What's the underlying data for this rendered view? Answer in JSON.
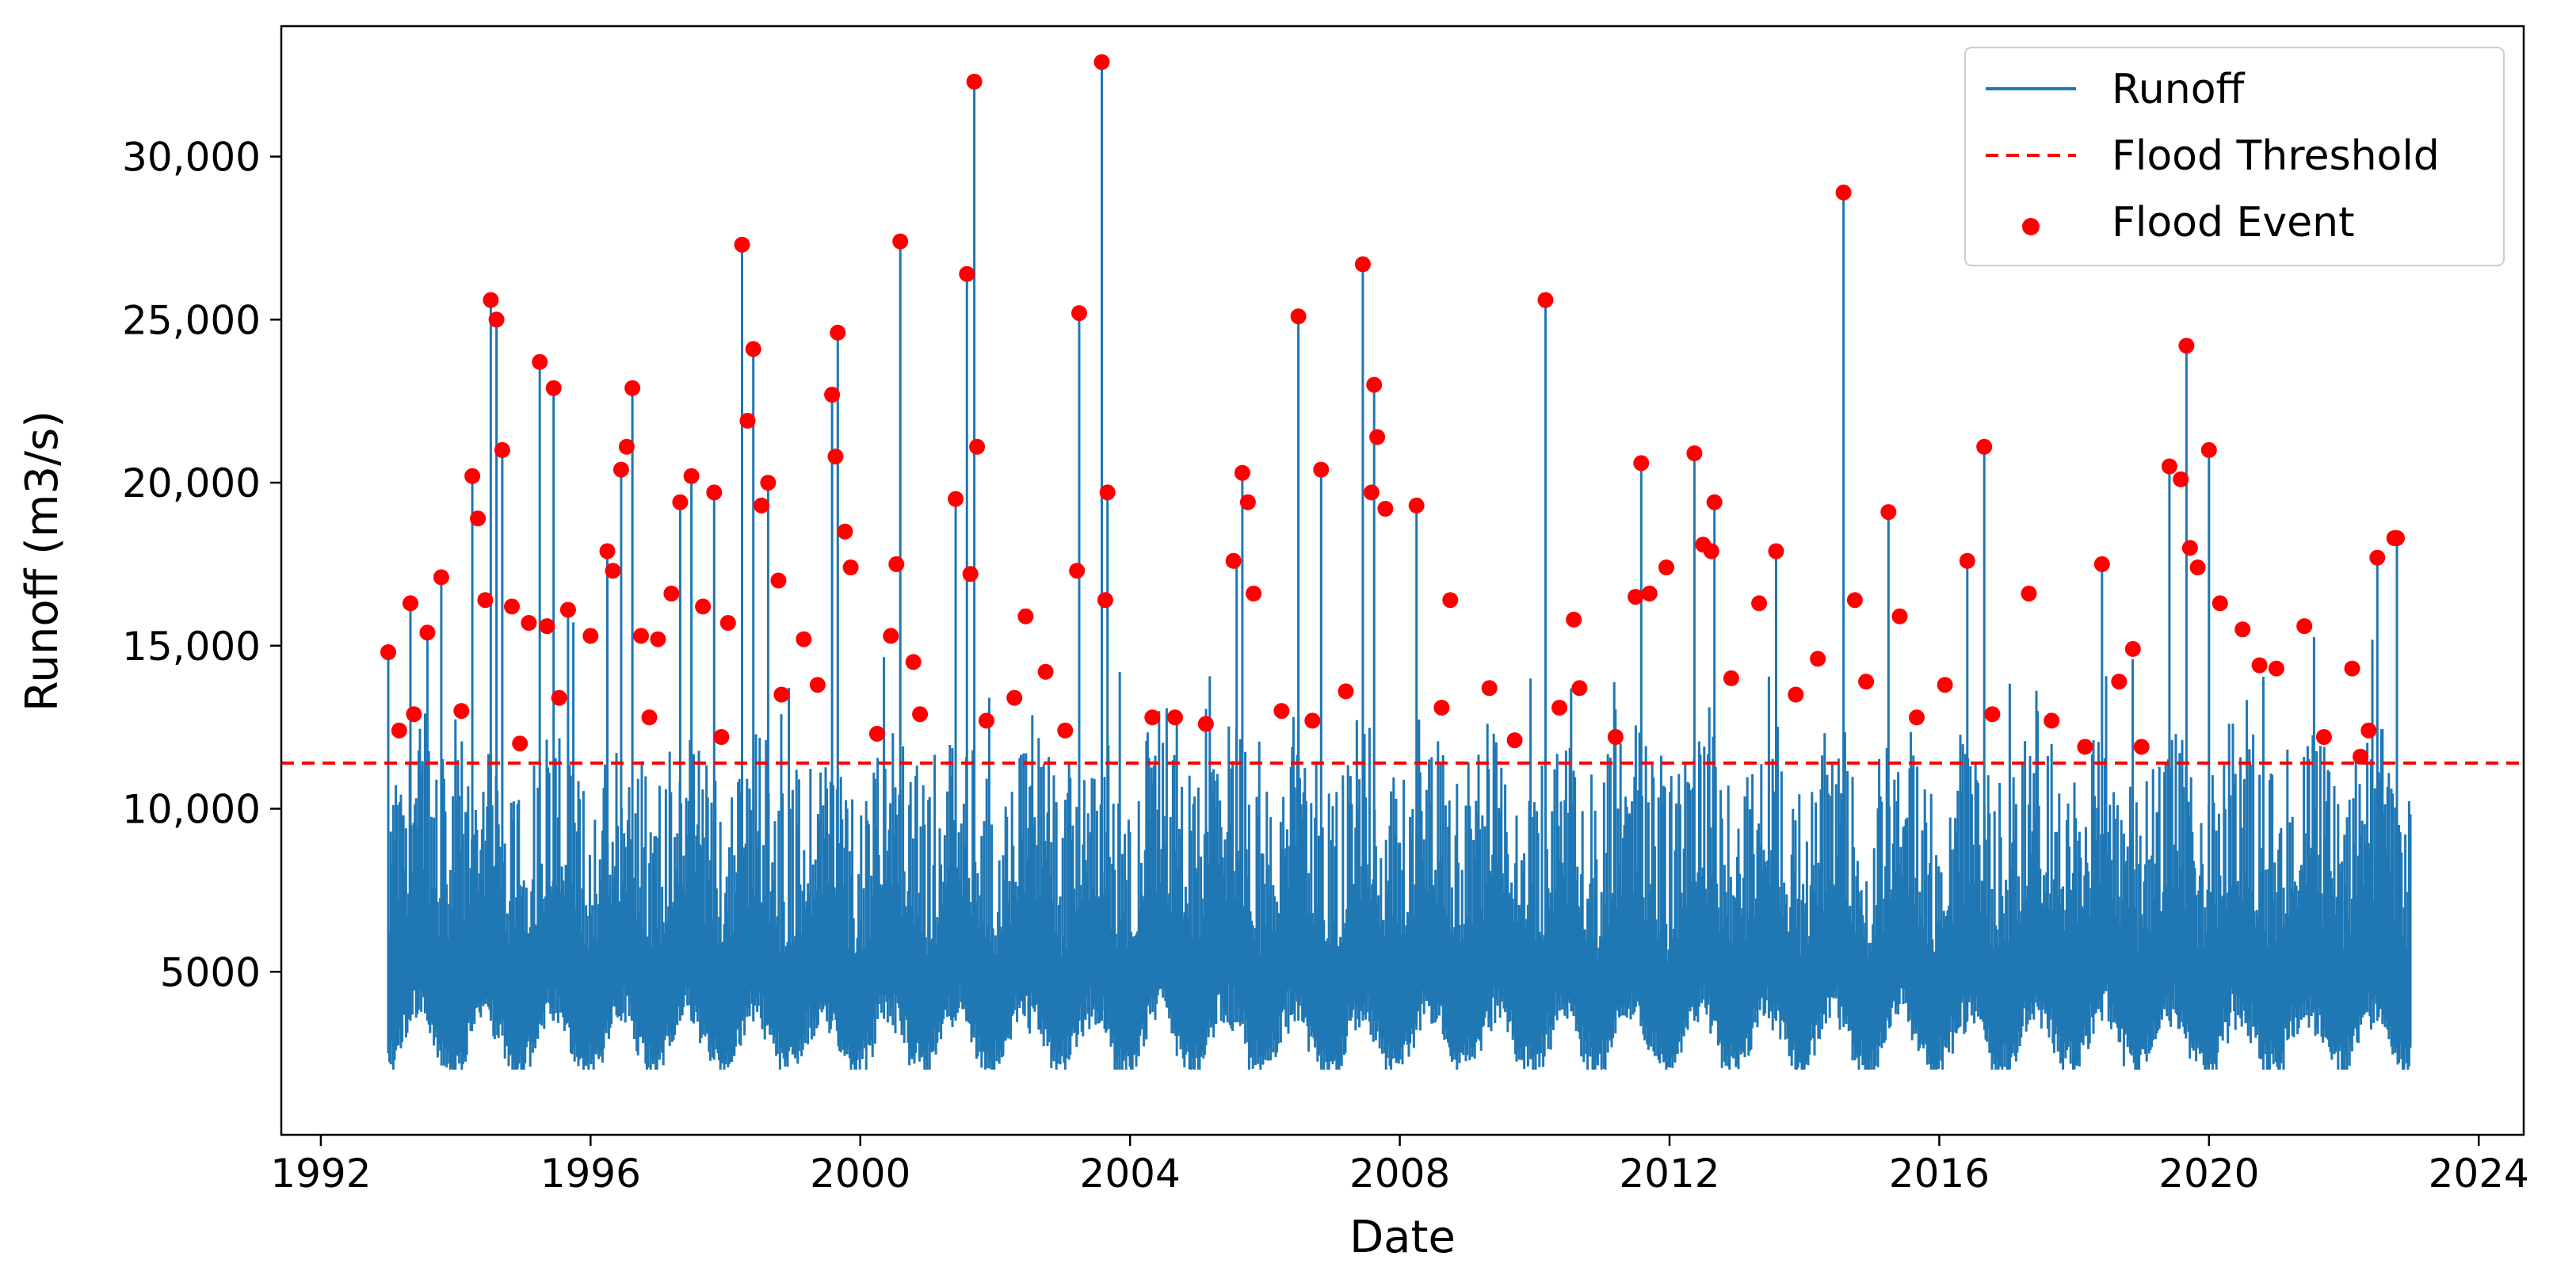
{
  "chart_data": {
    "type": "line",
    "title": "",
    "xlabel": "Date",
    "ylabel": "Runoff (m3/s)",
    "xlim": [
      "1991-06-01",
      "2024-09-01"
    ],
    "ylim": [
      0,
      34000
    ],
    "x_ticks": [
      "1992",
      "1996",
      "2000",
      "2004",
      "2008",
      "2012",
      "2016",
      "2020",
      "2024"
    ],
    "y_ticks": [
      {
        "value": 5000,
        "label": "5000"
      },
      {
        "value": 10000,
        "label": "10,000"
      },
      {
        "value": 15000,
        "label": "15,000"
      },
      {
        "value": 20000,
        "label": "20,000"
      },
      {
        "value": 25000,
        "label": "25,000"
      },
      {
        "value": 30000,
        "label": "30,000"
      }
    ],
    "grid": false,
    "legend_position": "top-right",
    "series": [
      {
        "name": "Runoff",
        "kind": "line",
        "color": "#1f77b4",
        "x_range": [
          "1993-01-01",
          "2022-12-31"
        ],
        "resolution": "daily",
        "typical_min": 2000,
        "typical_base": 3500,
        "peaks": [
          [
            "1993-01-01",
            14800
          ],
          [
            "1993-05-01",
            16300
          ],
          [
            "1993-08-01",
            15400
          ],
          [
            "1993-10-15",
            17100
          ],
          [
            "1994-04-01",
            20200
          ],
          [
            "1994-07-10",
            25600
          ],
          [
            "1994-08-10",
            25000
          ],
          [
            "1994-09-10",
            21000
          ],
          [
            "1995-04-01",
            23700
          ],
          [
            "1995-06-15",
            22900
          ],
          [
            "1995-09-01",
            16100
          ],
          [
            "1996-04-01",
            17900
          ],
          [
            "1996-06-15",
            20400
          ],
          [
            "1996-08-15",
            22900
          ],
          [
            "1997-05-01",
            19400
          ],
          [
            "1997-07-01",
            20200
          ],
          [
            "1997-11-01",
            19700
          ],
          [
            "1998-04-01",
            27300
          ],
          [
            "1998-06-01",
            24100
          ],
          [
            "1998-08-20",
            20000
          ],
          [
            "1999-08-01",
            22700
          ],
          [
            "1999-09-01",
            24600
          ],
          [
            "2000-08-05",
            27400
          ],
          [
            "2001-06-01",
            19500
          ],
          [
            "2001-08-01",
            26400
          ],
          [
            "2001-09-10",
            32300
          ],
          [
            "2003-04-01",
            25200
          ],
          [
            "2003-08-01",
            32900
          ],
          [
            "2003-09-01",
            19700
          ],
          [
            "2005-08-01",
            17600
          ],
          [
            "2005-09-01",
            20300
          ],
          [
            "2006-07-01",
            25100
          ],
          [
            "2006-11-01",
            20400
          ],
          [
            "2007-06-15",
            26700
          ],
          [
            "2007-08-15",
            23000
          ],
          [
            "2008-04-01",
            19300
          ],
          [
            "2010-03-01",
            25600
          ],
          [
            "2011-08-01",
            20600
          ],
          [
            "2012-05-15",
            20900
          ],
          [
            "2012-09-01",
            19400
          ],
          [
            "2013-08-01",
            17900
          ],
          [
            "2014-08-01",
            28900
          ],
          [
            "2015-04-01",
            19100
          ],
          [
            "2016-06-01",
            17600
          ],
          [
            "2016-09-01",
            21100
          ],
          [
            "2018-06-01",
            17500
          ],
          [
            "2019-06-01",
            20500
          ],
          [
            "2019-09-01",
            24200
          ],
          [
            "2020-01-01",
            21000
          ],
          [
            "2022-07-01",
            17700
          ],
          [
            "2022-10-15",
            18300
          ]
        ]
      },
      {
        "name": "Flood Threshold",
        "kind": "hline",
        "color": "#ff0000",
        "linestyle": "dashed",
        "y": 11400
      },
      {
        "name": "Flood Event",
        "kind": "scatter",
        "color": "#ff0000",
        "points": [
          [
            "1993-01-01",
            14800
          ],
          [
            "1993-05-01",
            16300
          ],
          [
            "1993-05-20",
            12900
          ],
          [
            "1993-08-01",
            15400
          ],
          [
            "1993-10-15",
            17100
          ],
          [
            "1994-02-01",
            13000
          ],
          [
            "1994-04-01",
            20200
          ],
          [
            "1994-05-01",
            18900
          ],
          [
            "1994-06-10",
            16400
          ],
          [
            "1994-07-10",
            25600
          ],
          [
            "1994-08-10",
            25000
          ],
          [
            "1994-09-10",
            21000
          ],
          [
            "1994-11-01",
            16200
          ],
          [
            "1995-02-01",
            15700
          ],
          [
            "1995-04-01",
            23700
          ],
          [
            "1995-05-10",
            15600
          ],
          [
            "1995-06-15",
            22900
          ],
          [
            "1995-09-01",
            16100
          ],
          [
            "1996-01-01",
            15300
          ],
          [
            "1996-04-01",
            17900
          ],
          [
            "1996-05-01",
            17300
          ],
          [
            "1996-06-15",
            20400
          ],
          [
            "1996-07-15",
            21100
          ],
          [
            "1996-08-15",
            22900
          ],
          [
            "1996-10-01",
            15300
          ],
          [
            "1997-01-01",
            15200
          ],
          [
            "1997-03-15",
            16600
          ],
          [
            "1997-05-01",
            19400
          ],
          [
            "1997-07-01",
            20200
          ],
          [
            "1997-09-01",
            16200
          ],
          [
            "1997-11-01",
            19700
          ],
          [
            "1998-01-15",
            15700
          ],
          [
            "1998-04-01",
            27300
          ],
          [
            "1998-05-01",
            21900
          ],
          [
            "1998-06-01",
            24100
          ],
          [
            "1998-07-15",
            19300
          ],
          [
            "1998-08-20",
            20000
          ],
          [
            "1998-10-15",
            17000
          ],
          [
            "1999-03-01",
            15200
          ],
          [
            "1999-08-01",
            22700
          ],
          [
            "1999-08-20",
            20800
          ],
          [
            "1999-09-01",
            24600
          ],
          [
            "1999-10-10",
            18500
          ],
          [
            "1999-11-10",
            17400
          ],
          [
            "2000-06-15",
            15300
          ],
          [
            "2000-08-05",
            27400
          ],
          [
            "2000-07-15",
            17500
          ],
          [
            "2000-10-15",
            14500
          ],
          [
            "2001-06-01",
            19500
          ],
          [
            "2001-08-01",
            26400
          ],
          [
            "2001-08-20",
            17200
          ],
          [
            "2001-09-10",
            32300
          ],
          [
            "2001-09-25",
            21100
          ],
          [
            "2002-06-15",
            15900
          ],
          [
            "2003-04-01",
            25200
          ],
          [
            "2003-03-20",
            17300
          ],
          [
            "2003-08-01",
            32900
          ],
          [
            "2003-08-20",
            16400
          ],
          [
            "2003-09-01",
            19700
          ],
          [
            "2005-07-15",
            17600
          ],
          [
            "2005-09-01",
            20300
          ],
          [
            "2005-10-01",
            19400
          ],
          [
            "2005-11-01",
            16600
          ],
          [
            "2006-07-01",
            25100
          ],
          [
            "2006-11-01",
            20400
          ],
          [
            "2007-06-15",
            26700
          ],
          [
            "2007-08-01",
            19700
          ],
          [
            "2007-08-15",
            23000
          ],
          [
            "2007-09-01",
            21400
          ],
          [
            "2007-10-15",
            19200
          ],
          [
            "2008-04-01",
            19300
          ],
          [
            "2008-10-01",
            16400
          ],
          [
            "2010-03-01",
            25600
          ],
          [
            "2010-08-01",
            15800
          ],
          [
            "2011-07-01",
            16500
          ],
          [
            "2011-08-01",
            20600
          ],
          [
            "2011-09-15",
            16600
          ],
          [
            "2011-12-15",
            17400
          ],
          [
            "2012-05-15",
            20900
          ],
          [
            "2012-07-01",
            18100
          ],
          [
            "2012-08-15",
            17900
          ],
          [
            "2012-09-01",
            19400
          ],
          [
            "2013-05-01",
            16300
          ],
          [
            "2013-08-01",
            17900
          ],
          [
            "2014-03-15",
            14600
          ],
          [
            "2014-08-01",
            28900
          ],
          [
            "2014-10-01",
            16400
          ],
          [
            "2015-04-01",
            19100
          ],
          [
            "2015-06-01",
            15900
          ],
          [
            "2016-06-01",
            17600
          ],
          [
            "2016-09-01",
            21100
          ],
          [
            "2017-05-01",
            16600
          ],
          [
            "2018-06-01",
            17500
          ],
          [
            "2019-06-01",
            20500
          ],
          [
            "2019-08-01",
            20100
          ],
          [
            "2019-09-01",
            24200
          ],
          [
            "2019-09-20",
            18000
          ],
          [
            "2019-11-01",
            17400
          ],
          [
            "2020-01-01",
            21000
          ],
          [
            "2020-03-01",
            16300
          ],
          [
            "2020-07-01",
            15500
          ],
          [
            "2021-06-01",
            15600
          ],
          [
            "2022-07-01",
            17700
          ],
          [
            "2022-10-01",
            18300
          ],
          [
            "2022-10-15",
            18300
          ],
          [
            "1993-03-01",
            12400
          ],
          [
            "1994-12-15",
            12000
          ],
          [
            "1995-07-15",
            13400
          ],
          [
            "1996-11-15",
            12800
          ],
          [
            "1997-12-10",
            12200
          ],
          [
            "1998-11-01",
            13500
          ],
          [
            "1999-05-15",
            13800
          ],
          [
            "2000-04-01",
            12300
          ],
          [
            "2000-11-20",
            12900
          ],
          [
            "2001-11-15",
            12700
          ],
          [
            "2002-04-15",
            13400
          ],
          [
            "2002-10-01",
            14200
          ],
          [
            "2003-01-15",
            12400
          ],
          [
            "2004-05-01",
            12800
          ],
          [
            "2004-09-01",
            12800
          ],
          [
            "2005-02-15",
            12600
          ],
          [
            "2006-04-01",
            13000
          ],
          [
            "2006-09-15",
            12700
          ],
          [
            "2007-03-15",
            13600
          ],
          [
            "2008-08-15",
            13100
          ],
          [
            "2009-05-01",
            13700
          ],
          [
            "2009-09-15",
            12100
          ],
          [
            "2010-09-01",
            13700
          ],
          [
            "2010-05-15",
            13100
          ],
          [
            "2011-03-15",
            12200
          ],
          [
            "2012-12-01",
            14000
          ],
          [
            "2013-11-15",
            13500
          ],
          [
            "2014-12-01",
            13900
          ],
          [
            "2015-09-01",
            12800
          ],
          [
            "2016-02-01",
            13800
          ],
          [
            "2016-10-15",
            12900
          ],
          [
            "2017-09-01",
            12700
          ],
          [
            "2018-03-01",
            11900
          ],
          [
            "2018-09-01",
            13900
          ],
          [
            "2018-11-15",
            14900
          ],
          [
            "2019-01-01",
            11900
          ],
          [
            "2020-10-01",
            14400
          ],
          [
            "2021-01-01",
            14300
          ],
          [
            "2021-09-15",
            12200
          ],
          [
            "2022-02-15",
            14300
          ],
          [
            "2022-04-01",
            11600
          ],
          [
            "2022-05-15",
            12400
          ]
        ]
      }
    ]
  }
}
